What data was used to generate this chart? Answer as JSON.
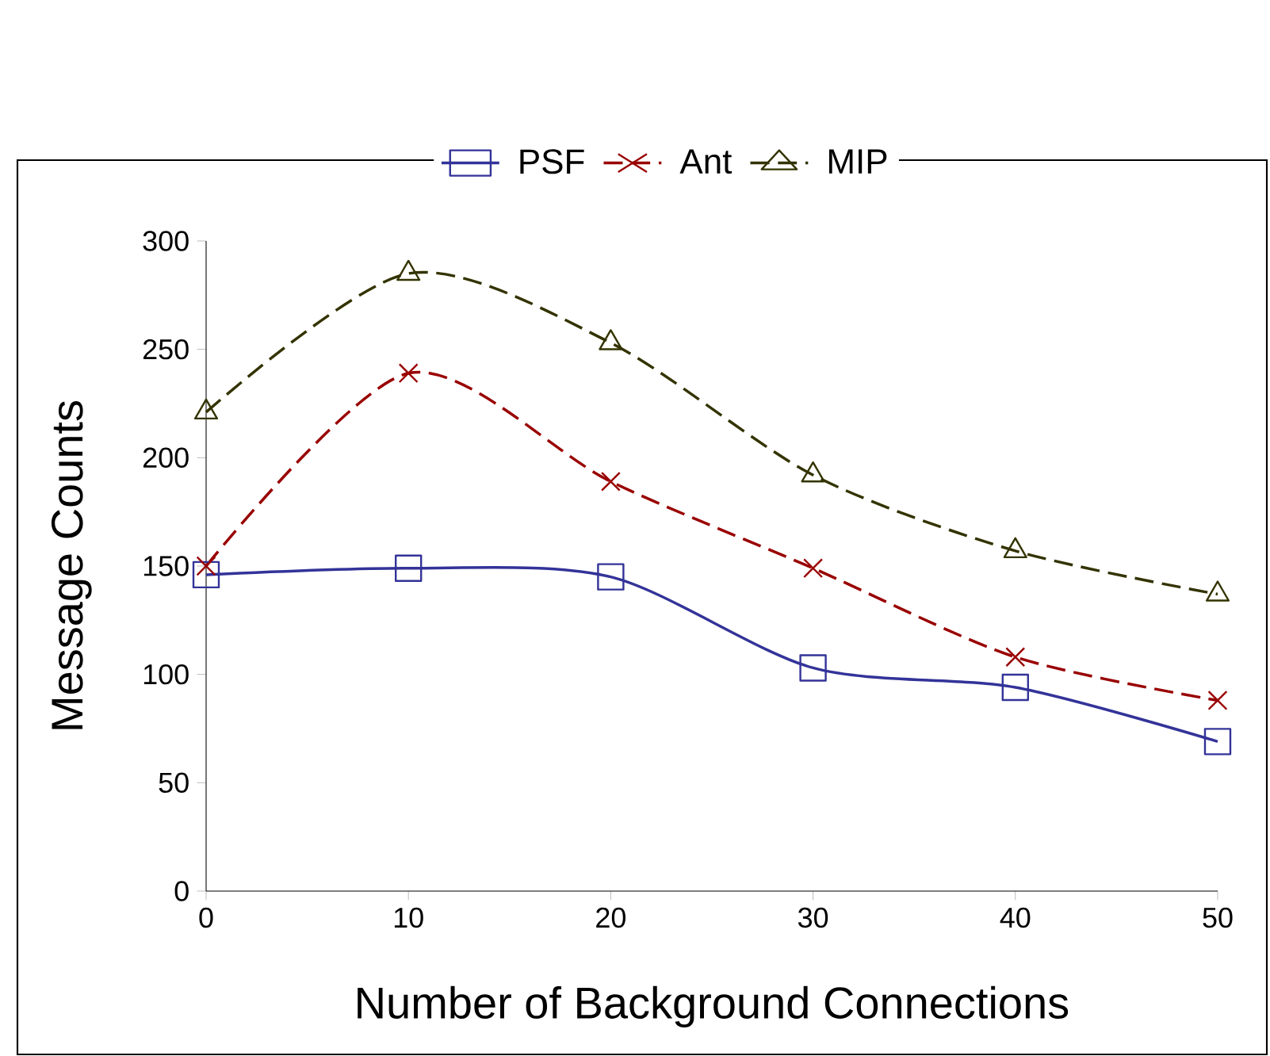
{
  "chart_data": {
    "type": "line",
    "xlabel": "Number of Background Connections",
    "ylabel": "Message Counts",
    "x": [
      0,
      10,
      20,
      30,
      40,
      50
    ],
    "series": [
      {
        "name": "PSF",
        "color": "#333399",
        "marker": "square",
        "line_style": "solid",
        "values": [
          146,
          149,
          145,
          103,
          94,
          69
        ]
      },
      {
        "name": "Ant",
        "color": "#990000",
        "marker": "cross",
        "line_style": "dashed",
        "values": [
          150,
          239,
          189,
          149,
          108,
          88
        ]
      },
      {
        "name": "MIP",
        "color": "#333300",
        "marker": "triangle",
        "line_style": "dashed",
        "values": [
          221,
          285,
          253,
          192,
          157,
          137
        ]
      }
    ],
    "xlim": [
      0,
      50
    ],
    "xticks": [
      0,
      10,
      20,
      30,
      40,
      50
    ],
    "ylim": [
      0,
      300
    ],
    "yticks": [
      0,
      50,
      100,
      150,
      200,
      250,
      300
    ],
    "legend": "top",
    "grid": false
  }
}
